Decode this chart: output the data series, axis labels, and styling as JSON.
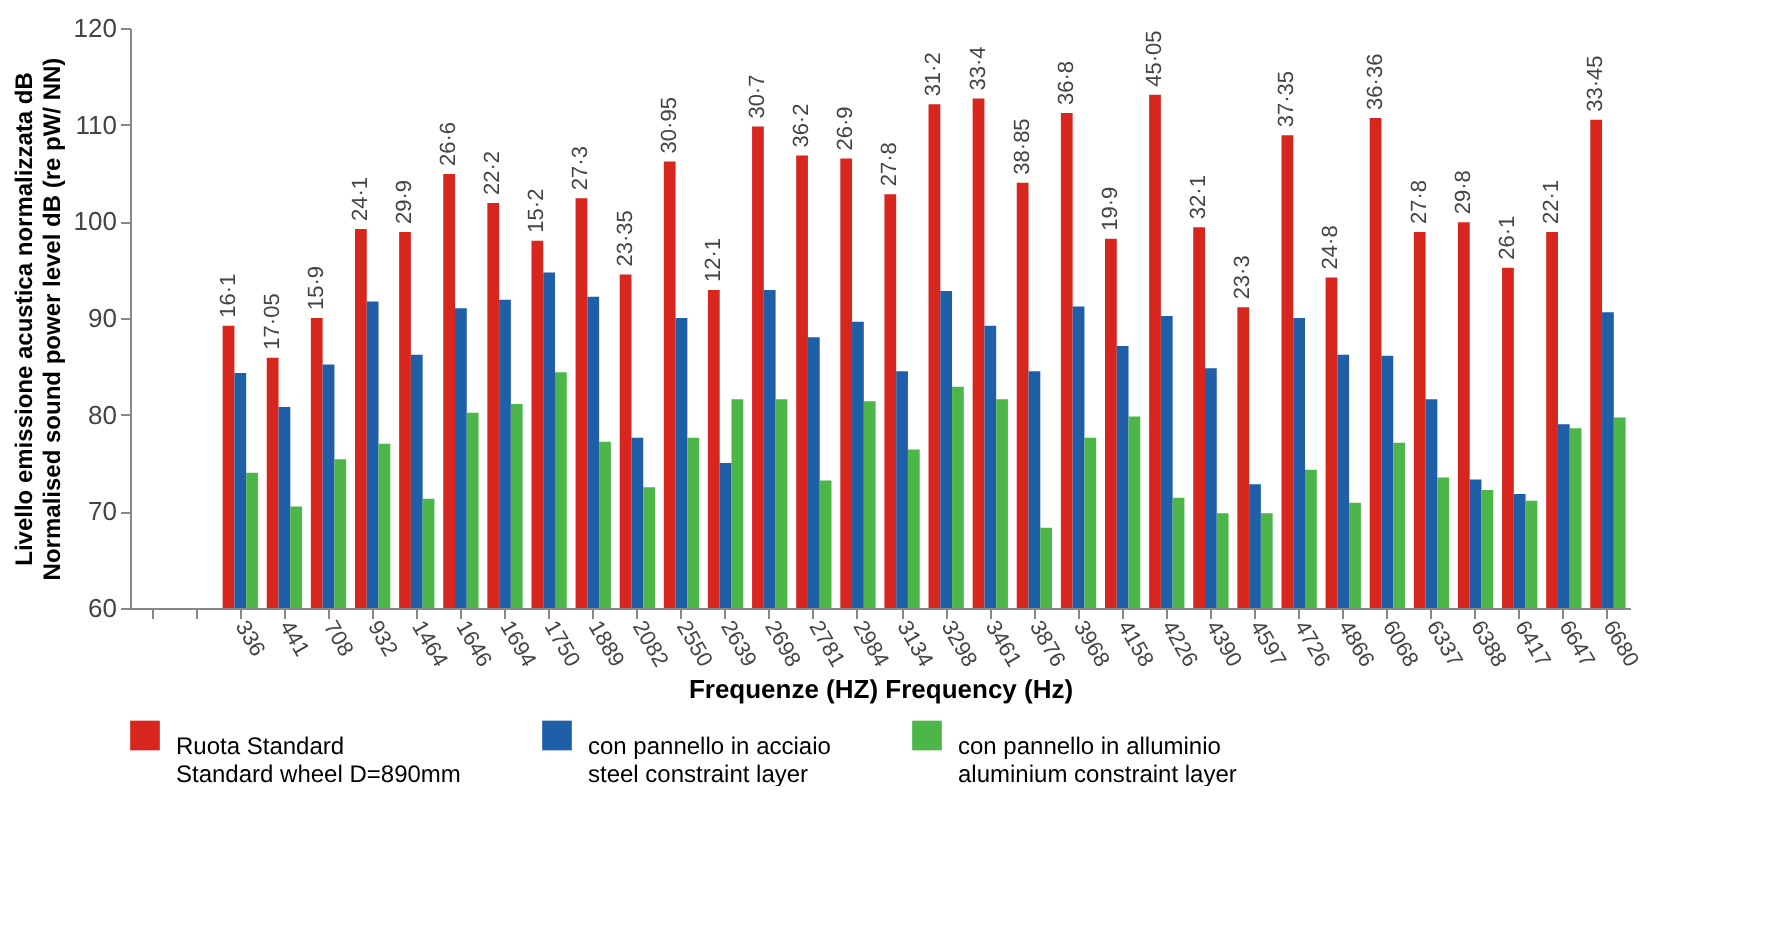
{
  "chart_data": {
    "type": "bar",
    "xlabel": "Frequenze (HZ)    Frequency (Hz)",
    "ylabel": "Livello emissione acustica normalizzata dB\nNormalised sound power level dB (re pW/ NN)",
    "categories": [
      null,
      null,
      "336",
      "441",
      "708",
      "932",
      "1464",
      "1646",
      "1694",
      "1750",
      "1889",
      "2082",
      "2550",
      "2639",
      "2698",
      "2781",
      "2984",
      "3134",
      "3298",
      "3461",
      "3876",
      "3968",
      "4158",
      "4226",
      "4390",
      "4597",
      "4726",
      "4866",
      "6068",
      "6337",
      "6388",
      "6417",
      "6647",
      "6680"
    ],
    "series": [
      {
        "name": "Ruota Standard\nStandard wheel D=890mm",
        "color": "#d7261e",
        "values": [
          null,
          null,
          89.2,
          85.9,
          90.0,
          99.2,
          98.9,
          104.9,
          101.9,
          98.0,
          102.4,
          94.5,
          106.2,
          92.9,
          109.8,
          106.8,
          106.5,
          102.8,
          112.1,
          112.7,
          104.0,
          111.2,
          98.2,
          113.1,
          99.4,
          91.1,
          108.9,
          94.2,
          110.7,
          98.9,
          99.9,
          95.2,
          98.9,
          110.5
        ]
      },
      {
        "name": "con pannello in acciaio\nsteel constraint layer",
        "color": "#1f5fa8",
        "values": [
          null,
          null,
          84.3,
          80.8,
          85.2,
          91.7,
          86.2,
          91.0,
          91.9,
          94.7,
          92.2,
          77.6,
          90.0,
          75.0,
          92.9,
          88.0,
          89.6,
          84.5,
          92.8,
          89.2,
          84.5,
          91.2,
          87.1,
          90.2,
          84.8,
          72.8,
          90.0,
          86.2,
          86.1,
          81.6,
          73.3,
          71.8,
          79.0,
          90.6
        ]
      },
      {
        "name": "con pannello in alluminio\naluminium constraint layer",
        "color": "#4cb648",
        "values": [
          null,
          null,
          74.0,
          70.5,
          75.4,
          77.0,
          71.3,
          80.2,
          81.1,
          84.4,
          77.2,
          72.5,
          77.6,
          81.6,
          81.6,
          73.2,
          81.4,
          76.4,
          82.9,
          81.6,
          68.3,
          77.6,
          79.8,
          71.4,
          69.8,
          69.8,
          74.3,
          70.9,
          77.1,
          73.5,
          72.2,
          71.1,
          78.6,
          79.7
        ]
      }
    ],
    "annotations": [
      {
        "text": "16·1",
        "x": "336",
        "y": 89.2
      },
      {
        "text": "17·05",
        "x": "441",
        "y": 85.9
      },
      {
        "text": "15·9",
        "x": "708",
        "y": 90.0
      },
      {
        "text": "24·1",
        "x": "932",
        "y": 99.2
      },
      {
        "text": "29·9",
        "x": "1464",
        "y": 98.9
      },
      {
        "text": "26·6",
        "x": "1646",
        "y": 104.9
      },
      {
        "text": "22·2",
        "x": "1694",
        "y": 101.9
      },
      {
        "text": "15·2",
        "x": "1750",
        "y": 98.0
      },
      {
        "text": "27·3",
        "x": "1889",
        "y": 102.4
      },
      {
        "text": "23·35",
        "x": "2082",
        "y": 94.5
      },
      {
        "text": "30·95",
        "x": "2550",
        "y": 106.2
      },
      {
        "text": "12·1",
        "x": "2639",
        "y": 92.9
      },
      {
        "text": "30·7",
        "x": "2698",
        "y": 109.8
      },
      {
        "text": "36·2",
        "x": "2781",
        "y": 106.8
      },
      {
        "text": "26·9",
        "x": "2984",
        "y": 106.5
      },
      {
        "text": "27·8",
        "x": "3134",
        "y": 102.8
      },
      {
        "text": "31·2",
        "x": "3298",
        "y": 112.1
      },
      {
        "text": "33·4",
        "x": "3461",
        "y": 112.7
      },
      {
        "text": "38·85",
        "x": "3876",
        "y": 104.0
      },
      {
        "text": "36·8",
        "x": "3968",
        "y": 111.2
      },
      {
        "text": "19·9",
        "x": "4158",
        "y": 98.2
      },
      {
        "text": "45·05",
        "x": "4226",
        "y": 113.1
      },
      {
        "text": "32·1",
        "x": "4390",
        "y": 99.4
      },
      {
        "text": "23·3",
        "x": "4597",
        "y": 91.1
      },
      {
        "text": "37·35",
        "x": "4726",
        "y": 108.9
      },
      {
        "text": "24·8",
        "x": "4866",
        "y": 94.2
      },
      {
        "text": "36·36",
        "x": "6068",
        "y": 110.7
      },
      {
        "text": "27·8",
        "x": "6337",
        "y": 98.9
      },
      {
        "text": "29·8",
        "x": "6388",
        "y": 99.9
      },
      {
        "text": "26·1",
        "x": "6417",
        "y": 95.2
      },
      {
        "text": "22·1",
        "x": "6647",
        "y": 98.9
      },
      {
        "text": "33·45",
        "x": "6680",
        "y": 110.5
      }
    ],
    "ylim": [
      60,
      120
    ],
    "yticks": [
      60,
      70,
      80,
      90,
      100,
      110,
      120
    ],
    "grid": false,
    "legend": "bottom"
  }
}
